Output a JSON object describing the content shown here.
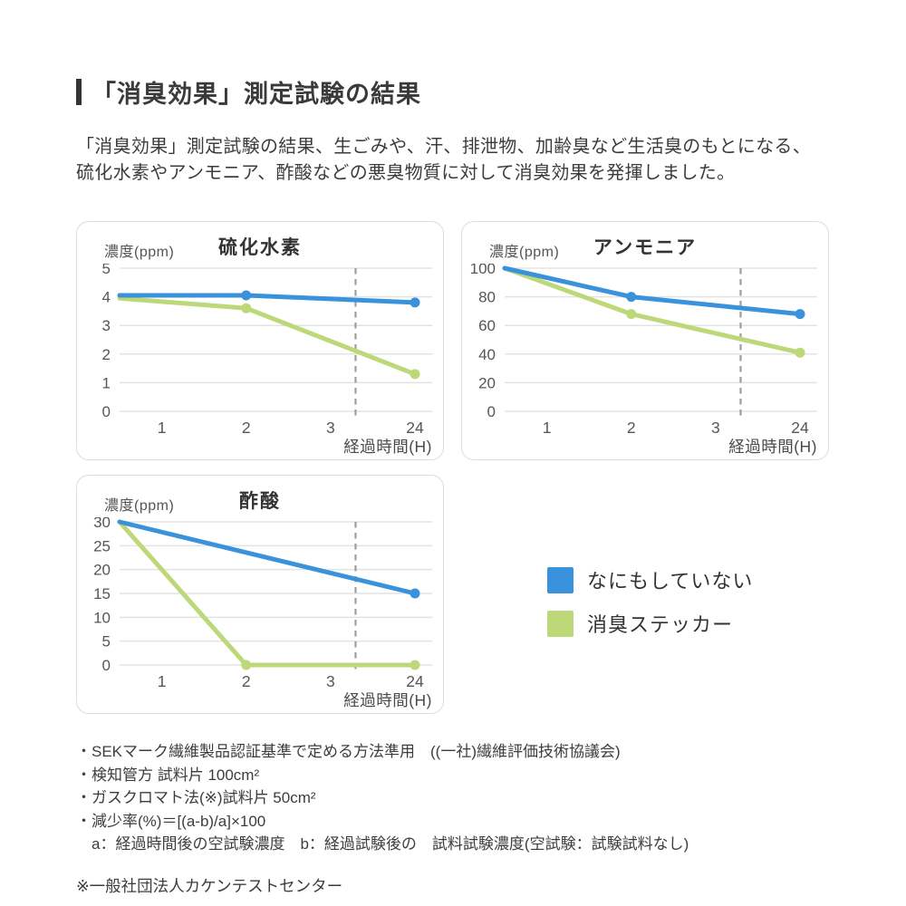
{
  "page": {
    "title": "「消臭効果」測定試験の結果",
    "intro_lines": [
      "「消臭効果」測定試験の結果、生ごみや、汗、排泄物、加齢臭など生活臭のもとになる、",
      "硫化水素やアンモニア、酢酸などの悪臭物質に対して消臭効果を発揮しました。"
    ]
  },
  "colors": {
    "blue": "#3992DB",
    "green": "#BCD878",
    "grid": "#E3E3E3",
    "dash": "#9E9E9E",
    "tick_text": "#565656",
    "axis_label_text": "#4A4A4A",
    "panel_border": "#DCDCDC"
  },
  "legend": {
    "items": [
      {
        "label": "なにもしていない",
        "color": "#3992DB"
      },
      {
        "label": "消臭ステッカー",
        "color": "#BCD878"
      }
    ]
  },
  "chart_data": [
    {
      "type": "line",
      "title": "硫化水素",
      "y_unit": "濃度(ppm)",
      "x_label": "経過時間(H)",
      "x_ticks": [
        "1",
        "2",
        "3",
        "24"
      ],
      "y_ticks": [
        5,
        4,
        3,
        2,
        1,
        0
      ],
      "y_max": 5,
      "break_fraction": 0.755,
      "grid": true,
      "series": [
        {
          "name": "なにもしていない",
          "color": "#3992DB",
          "points": [
            {
              "t": 0,
              "v": 4.05,
              "marker": false
            },
            {
              "t": 2,
              "v": 4.05,
              "marker": true
            },
            {
              "t": 24,
              "v": 3.8,
              "marker": true
            }
          ]
        },
        {
          "name": "消臭ステッカー",
          "color": "#BCD878",
          "points": [
            {
              "t": 0,
              "v": 3.95,
              "marker": false
            },
            {
              "t": 2,
              "v": 3.6,
              "marker": true
            },
            {
              "t": 24,
              "v": 1.3,
              "marker": true
            }
          ]
        }
      ]
    },
    {
      "type": "line",
      "title": "アンモニア",
      "y_unit": "濃度(ppm)",
      "x_label": "経過時間(H)",
      "x_ticks": [
        "1",
        "2",
        "3",
        "24"
      ],
      "y_ticks": [
        100,
        80,
        60,
        40,
        20,
        0
      ],
      "y_max": 100,
      "break_fraction": 0.755,
      "grid": true,
      "series": [
        {
          "name": "なにもしていない",
          "color": "#3992DB",
          "points": [
            {
              "t": 0,
              "v": 100,
              "marker": false
            },
            {
              "t": 2,
              "v": 80,
              "marker": true
            },
            {
              "t": 24,
              "v": 68,
              "marker": true
            }
          ]
        },
        {
          "name": "消臭ステッカー",
          "color": "#BCD878",
          "points": [
            {
              "t": 0,
              "v": 100,
              "marker": false
            },
            {
              "t": 2,
              "v": 68,
              "marker": true
            },
            {
              "t": 24,
              "v": 41,
              "marker": true
            }
          ]
        }
      ]
    },
    {
      "type": "line",
      "title": "酢酸",
      "y_unit": "濃度(ppm)",
      "x_label": "経過時間(H)",
      "x_ticks": [
        "1",
        "2",
        "3",
        "24"
      ],
      "y_ticks": [
        30,
        25,
        20,
        15,
        10,
        5,
        0
      ],
      "y_max": 30,
      "break_fraction": 0.755,
      "grid": true,
      "series": [
        {
          "name": "なにもしていない",
          "color": "#3992DB",
          "points": [
            {
              "t": 0,
              "v": 30,
              "marker": false
            },
            {
              "t": 24,
              "v": 15,
              "marker": true
            }
          ]
        },
        {
          "name": "消臭ステッカー",
          "color": "#BCD878",
          "points": [
            {
              "t": 0,
              "v": 30,
              "marker": false
            },
            {
              "t": 2,
              "v": 0,
              "marker": true
            },
            {
              "t": 24,
              "v": 0,
              "marker": true
            }
          ]
        }
      ]
    }
  ],
  "footnotes": {
    "lines": [
      "・SEKマーク繊維製品認証基準で定める方法準用　((一社)繊維評価技術協議会)",
      "・検知管方 試料片 100cm²",
      "・ガスクロマト法(※)試料片 50cm²",
      "・減少率(%)＝[(a-b)/a]×100",
      "　a：経過時間後の空試験濃度　b：経過試験後の　試料試験濃度(空試験：試験試料なし)"
    ],
    "org_note": "※一般社団法人カケンテストセンター"
  }
}
